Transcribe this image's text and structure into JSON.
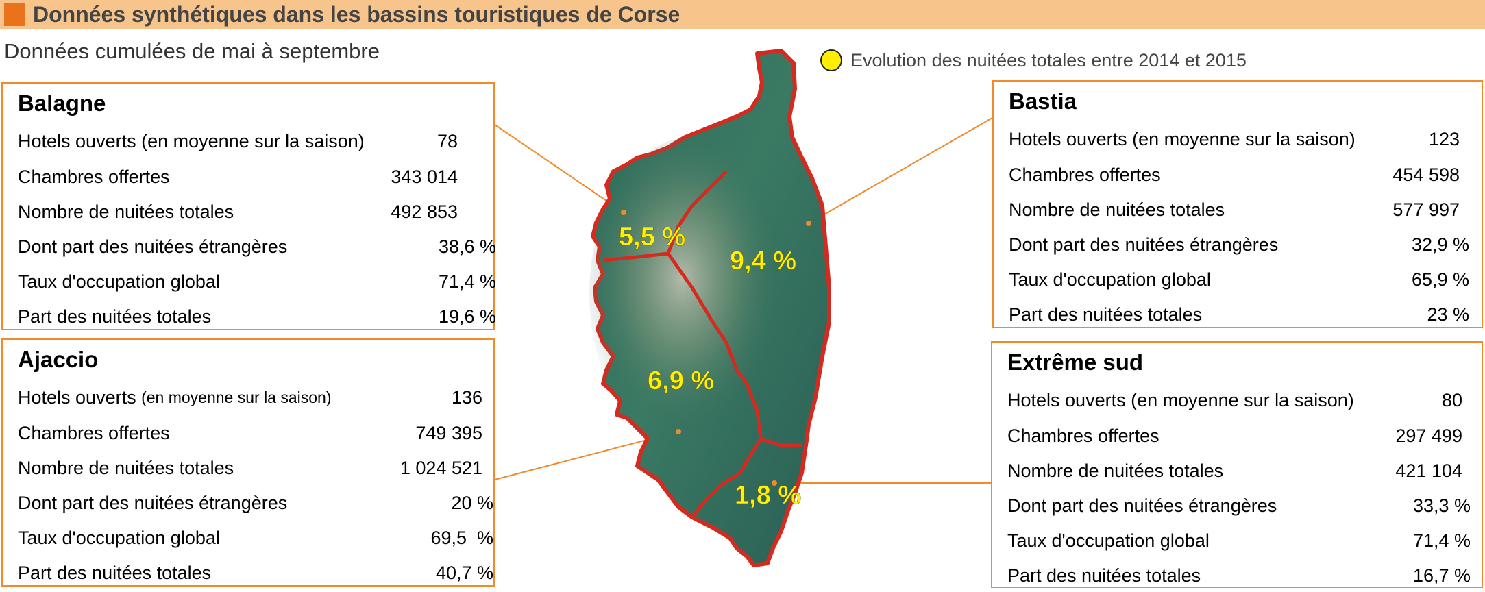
{
  "title": "Données synthétiques dans les bassins touristiques de Corse",
  "subtitle": "Données cumulées de mai à septembre",
  "legend": {
    "text": "Evolution des nuitées totales entre 2014 et 2015",
    "color": "#ffee00"
  },
  "colors": {
    "title_bar": "#f7c48b",
    "title_mark": "#e8731c",
    "box_border": "#f08a2a",
    "region_border": "#d42a1f",
    "label": "#fff200"
  },
  "regions": {
    "balagne": {
      "name": "Balagne",
      "evolution": "5,5 %",
      "rows": [
        {
          "label": "Hotels ouverts (en moyenne sur la saison)",
          "value": "78"
        },
        {
          "label": "Chambres offertes",
          "value": "343 014"
        },
        {
          "label": "Nombre de nuitées totales",
          "value": "492 853"
        },
        {
          "label": "Dont part des nuitées étrangères",
          "value": "38,6 %"
        },
        {
          "label": "Taux d'occupation global",
          "value": "71,4 %"
        },
        {
          "label": "Part des nuitées totales",
          "value": "19,6 %"
        }
      ]
    },
    "ajaccio": {
      "name": "Ajaccio",
      "evolution": "6,9 %",
      "rows": [
        {
          "label": "Hotels ouverts",
          "label_small": "(en moyenne sur la saison)",
          "value": "136"
        },
        {
          "label": "Chambres offertes",
          "value": "749 395"
        },
        {
          "label": "Nombre de nuitées totales",
          "value": "1 024 521"
        },
        {
          "label": "Dont part des nuitées étrangères",
          "value": "20 %"
        },
        {
          "label": "Taux d'occupation global",
          "value": "69,5  %"
        },
        {
          "label": "Part des nuitées totales",
          "value": "40,7 %"
        }
      ]
    },
    "bastia": {
      "name": "Bastia",
      "evolution": "9,4 %",
      "rows": [
        {
          "label": "Hotels ouverts (en moyenne sur la saison)",
          "value": "123"
        },
        {
          "label": "Chambres offertes",
          "value": "454 598"
        },
        {
          "label": "Nombre de nuitées totales",
          "value": "577 997"
        },
        {
          "label": "Dont part des nuitées étrangères",
          "value": "32,9 %"
        },
        {
          "label": "Taux d'occupation global",
          "value": "65,9 %"
        },
        {
          "label": "Part des nuitées totales",
          "value": "23 %"
        }
      ]
    },
    "extreme_sud": {
      "name": "Extrême sud",
      "evolution": "1,8 %",
      "rows": [
        {
          "label": "Hotels ouverts (en moyenne sur la saison)",
          "value": "80"
        },
        {
          "label": "Chambres offertes",
          "value": "297 499"
        },
        {
          "label": "Nombre de nuitées totales",
          "value": "421 104"
        },
        {
          "label": "Dont part des nuitées étrangères",
          "value": "33,3 %"
        },
        {
          "label": "Taux d'occupation global",
          "value": "71,4 %"
        },
        {
          "label": "Part des nuitées totales",
          "value": "16,7 %"
        }
      ]
    }
  }
}
